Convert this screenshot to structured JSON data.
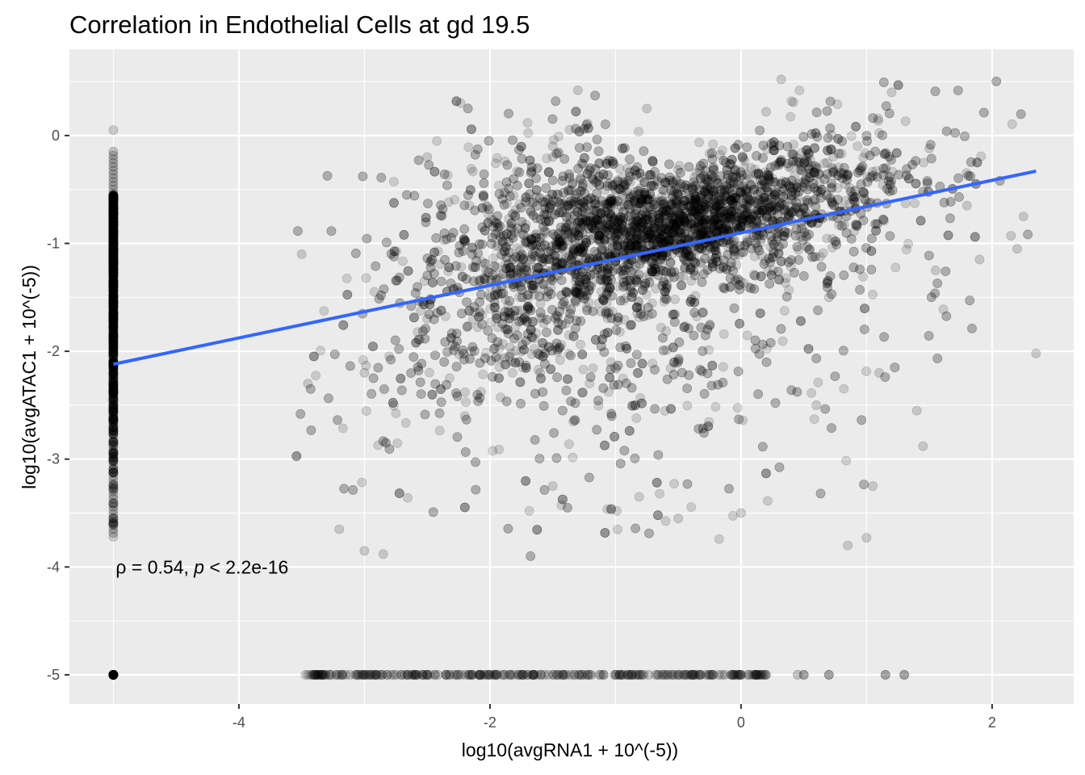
{
  "chart_data": {
    "type": "scatter",
    "title": "Correlation in Endothelial Cells at gd 19.5",
    "xlabel": "log10(avgRNA1 + 10^(-5))",
    "ylabel": "log10(avgATAC1 + 10^(-5))",
    "xlim": [
      -5.35,
      2.65
    ],
    "ylim": [
      -5.27,
      0.8
    ],
    "x_ticks": [
      -4,
      -2,
      0,
      2
    ],
    "x_tick_labels": [
      "-4",
      "-2",
      "0",
      "2"
    ],
    "y_ticks": [
      0,
      -1,
      -2,
      -3,
      -4,
      -5
    ],
    "y_tick_labels": [
      "0",
      "-1",
      "-2",
      "-3",
      "-4",
      "-5"
    ],
    "grid": true,
    "point_color": "#000000",
    "panel_background": "#ebebeb",
    "grid_color": "#ffffff",
    "annotation": {
      "rho_label": "ρ = 0.54, ",
      "p_symbol": "p",
      "p_value": " < 2.2e-16",
      "x": -5,
      "y": -4
    },
    "series": [
      {
        "name": "",
        "kind": "points",
        "points_sample": [
          [
            -5,
            -5
          ],
          [
            -5,
            0.05
          ],
          [
            -5,
            -3.72
          ],
          [
            -5,
            -1.0
          ],
          [
            -5,
            -2.0
          ],
          [
            -5,
            -3.0
          ],
          [
            -3.47,
            -5
          ],
          [
            -3.0,
            -5
          ],
          [
            -2.5,
            -5
          ],
          [
            -2.0,
            -5
          ],
          [
            -1.5,
            -5
          ],
          [
            -1.0,
            -5
          ],
          [
            -0.5,
            -5
          ],
          [
            0.0,
            -5
          ],
          [
            0.2,
            -5
          ],
          [
            0.5,
            -5
          ],
          [
            0.7,
            -5
          ],
          [
            1.15,
            -5
          ],
          [
            1.3,
            -5
          ],
          [
            -3.5,
            -1.1
          ],
          [
            -3.45,
            -2.3
          ],
          [
            -3.2,
            -3.65
          ],
          [
            -3.0,
            -3.85
          ],
          [
            -2.85,
            -3.88
          ],
          [
            -2.5,
            -0.2
          ],
          [
            -1.5,
            -0.1
          ],
          [
            -1.3,
            0.42
          ],
          [
            -0.75,
            0.25
          ],
          [
            0.2,
            0.22
          ],
          [
            0.32,
            0.52
          ],
          [
            1.2,
            0.4
          ],
          [
            1.5,
            -0.12
          ],
          [
            -1.5,
            -3.25
          ],
          [
            -0.5,
            -3.55
          ],
          [
            0.0,
            -3.5
          ],
          [
            0.85,
            -3.8
          ],
          [
            1.0,
            -3.73
          ],
          [
            1.05,
            -3.25
          ],
          [
            1.45,
            -2.88
          ],
          [
            2.35,
            -2.02
          ],
          [
            1.4,
            -2.55
          ],
          [
            1.1,
            -2.2
          ],
          [
            0.6,
            -2.5
          ],
          [
            0.7,
            -1.5
          ],
          [
            2.15,
            -0.93
          ],
          [
            2.2,
            -1.05
          ],
          [
            2.25,
            -0.75
          ],
          [
            1.8,
            -0.65
          ],
          [
            1.9,
            -1.15
          ],
          [
            1.55,
            -1.25
          ],
          [
            -1.0,
            -0.9
          ],
          [
            -0.6,
            -1.0
          ],
          [
            -0.3,
            -0.85
          ],
          [
            -1.5,
            -1.1
          ],
          [
            -2.0,
            -1.4
          ],
          [
            -2.5,
            -1.7
          ],
          [
            -3.0,
            -2.2
          ],
          [
            -2.2,
            -2.6
          ],
          [
            -1.6,
            -2.2
          ],
          [
            -0.8,
            -1.6
          ],
          [
            0.3,
            -0.9
          ]
        ]
      },
      {
        "name": "",
        "kind": "fit_line",
        "color": "#3366ff",
        "x": [
          -5,
          2.35
        ],
        "y": [
          -2.12,
          -0.33
        ]
      }
    ]
  }
}
